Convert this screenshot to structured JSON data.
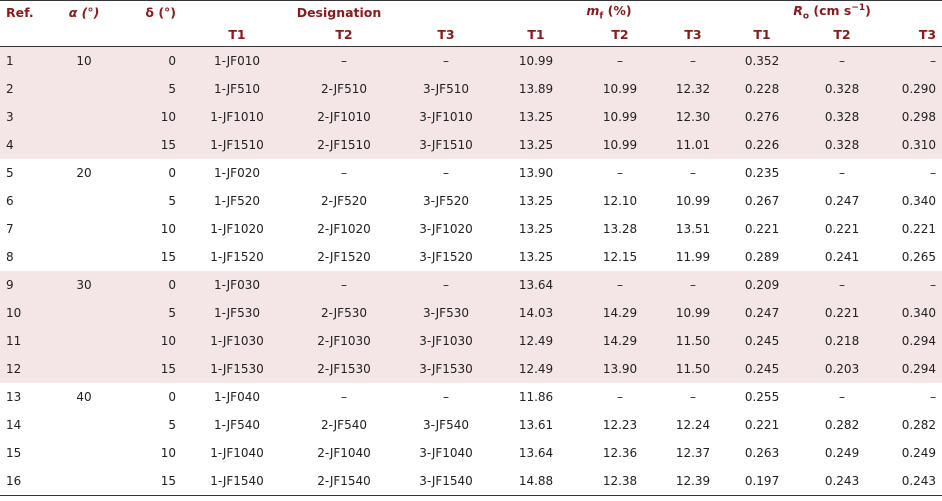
{
  "headers": {
    "ref": "Ref.",
    "alpha": "α (°)",
    "delta": "δ (°)",
    "designation": "Designation",
    "mf_m": "m",
    "mf_sub": "f",
    "mf_unit": " (%)",
    "ro_r": "R",
    "ro_sub": "o",
    "ro_unit": " (cm s",
    "ro_sup": "−1",
    "ro_close": ")",
    "t1": "T1",
    "t2": "T2",
    "t3": "T3"
  },
  "rows": [
    {
      "ref": "1",
      "alpha": "10",
      "delta": "0",
      "d1": "1-JF010",
      "d2": "–",
      "d3": "–",
      "m1": "10.99",
      "m2": "–",
      "m3": "–",
      "r1": "0.352",
      "r2": "–",
      "r3": "–"
    },
    {
      "ref": "2",
      "alpha": "",
      "delta": "5",
      "d1": "1-JF510",
      "d2": "2-JF510",
      "d3": "3-JF510",
      "m1": "13.89",
      "m2": "10.99",
      "m3": "12.32",
      "r1": "0.228",
      "r2": "0.328",
      "r3": "0.290"
    },
    {
      "ref": "3",
      "alpha": "",
      "delta": "10",
      "d1": "1-JF1010",
      "d2": "2-JF1010",
      "d3": "3-JF1010",
      "m1": "13.25",
      "m2": "10.99",
      "m3": "12.30",
      "r1": "0.276",
      "r2": "0.328",
      "r3": "0.298"
    },
    {
      "ref": "4",
      "alpha": "",
      "delta": "15",
      "d1": "1-JF1510",
      "d2": "2-JF1510",
      "d3": "3-JF1510",
      "m1": "13.25",
      "m2": "10.99",
      "m3": "11.01",
      "r1": "0.226",
      "r2": "0.328",
      "r3": "0.310"
    },
    {
      "ref": "5",
      "alpha": "20",
      "delta": "0",
      "d1": "1-JF020",
      "d2": "–",
      "d3": "–",
      "m1": "13.90",
      "m2": "–",
      "m3": "–",
      "r1": "0.235",
      "r2": "–",
      "r3": "–"
    },
    {
      "ref": "6",
      "alpha": "",
      "delta": "5",
      "d1": "1-JF520",
      "d2": "2-JF520",
      "d3": "3-JF520",
      "m1": "13.25",
      "m2": "12.10",
      "m3": "10.99",
      "r1": "0.267",
      "r2": "0.247",
      "r3": "0.340"
    },
    {
      "ref": "7",
      "alpha": "",
      "delta": "10",
      "d1": "1-JF1020",
      "d2": "2-JF1020",
      "d3": "3-JF1020",
      "m1": "13.25",
      "m2": "13.28",
      "m3": "13.51",
      "r1": "0.221",
      "r2": "0.221",
      "r3": "0.221"
    },
    {
      "ref": "8",
      "alpha": "",
      "delta": "15",
      "d1": "1-JF1520",
      "d2": "2-JF1520",
      "d3": "3-JF1520",
      "m1": "13.25",
      "m2": "12.15",
      "m3": "11.99",
      "r1": "0.289",
      "r2": "0.241",
      "r3": "0.265"
    },
    {
      "ref": "9",
      "alpha": "30",
      "delta": "0",
      "d1": "1-JF030",
      "d2": "–",
      "d3": "–",
      "m1": "13.64",
      "m2": "–",
      "m3": "–",
      "r1": "0.209",
      "r2": "–",
      "r3": "–"
    },
    {
      "ref": "10",
      "alpha": "",
      "delta": "5",
      "d1": "1-JF530",
      "d2": "2-JF530",
      "d3": "3-JF530",
      "m1": "14.03",
      "m2": "14.29",
      "m3": "10.99",
      "r1": "0.247",
      "r2": "0.221",
      "r3": "0.340"
    },
    {
      "ref": "11",
      "alpha": "",
      "delta": "10",
      "d1": "1-JF1030",
      "d2": "2-JF1030",
      "d3": "3-JF1030",
      "m1": "12.49",
      "m2": "14.29",
      "m3": "11.50",
      "r1": "0.245",
      "r2": "0.218",
      "r3": "0.294"
    },
    {
      "ref": "12",
      "alpha": "",
      "delta": "15",
      "d1": "1-JF1530",
      "d2": "2-JF1530",
      "d3": "3-JF1530",
      "m1": "12.49",
      "m2": "13.90",
      "m3": "11.50",
      "r1": "0.245",
      "r2": "0.203",
      "r3": "0.294"
    },
    {
      "ref": "13",
      "alpha": "40",
      "delta": "0",
      "d1": "1-JF040",
      "d2": "–",
      "d3": "–",
      "m1": "11.86",
      "m2": "–",
      "m3": "–",
      "r1": "0.255",
      "r2": "–",
      "r3": "–"
    },
    {
      "ref": "14",
      "alpha": "",
      "delta": "5",
      "d1": "1-JF540",
      "d2": "2-JF540",
      "d3": "3-JF540",
      "m1": "13.61",
      "m2": "12.23",
      "m3": "12.24",
      "r1": "0.221",
      "r2": "0.282",
      "r3": "0.282"
    },
    {
      "ref": "15",
      "alpha": "",
      "delta": "10",
      "d1": "1-JF1040",
      "d2": "2-JF1040",
      "d3": "3-JF1040",
      "m1": "13.64",
      "m2": "12.36",
      "m3": "12.37",
      "r1": "0.263",
      "r2": "0.249",
      "r3": "0.249"
    },
    {
      "ref": "16",
      "alpha": "",
      "delta": "15",
      "d1": "1-JF1540",
      "d2": "2-JF1540",
      "d3": "3-JF1540",
      "m1": "14.88",
      "m2": "12.38",
      "m3": "12.39",
      "r1": "0.197",
      "r2": "0.243",
      "r3": "0.243"
    }
  ],
  "colors": {
    "header_text": "#8b1a1a",
    "shade": "#f4e6e6"
  }
}
